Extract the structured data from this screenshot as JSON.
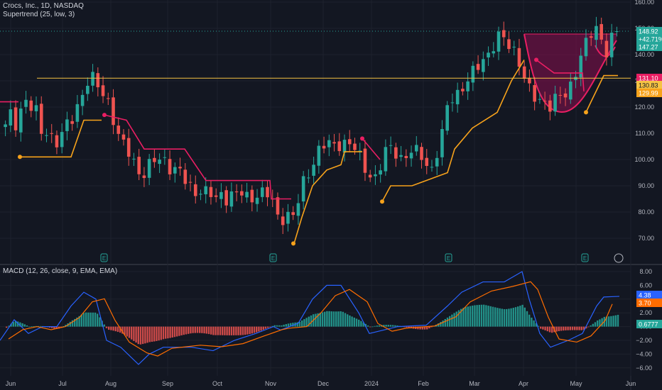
{
  "header": {
    "symbol_line": "Crocs, Inc., 1D, NASDAQ",
    "indicator_line": "Supertrend (25, low, 3)",
    "macd_line": "MACD (12, 26, close, 9, EMA, EMA)"
  },
  "colors": {
    "background": "#131722",
    "grid": "#1e222d",
    "up": "#26a69a",
    "down": "#ef5350",
    "supertrend_up": "#f7a21b",
    "supertrend_down": "#e91e63",
    "resistance": "#f6c343",
    "macd": "#2962ff",
    "signal": "#ff6d00",
    "cup": "#880e4f"
  },
  "price_axis": {
    "ticks": [
      "160.00",
      "150.00",
      "140.00",
      "130.00",
      "120.00",
      "110.00",
      "100.00",
      "90.00",
      "80.00",
      "70.00"
    ],
    "badges": [
      {
        "text": "148.92",
        "bg": "#26a69a"
      },
      {
        "text": "+42.71%",
        "bg": "#26a69a"
      },
      {
        "text": "147.27",
        "bg": "#26a69a"
      },
      {
        "text": "131.10",
        "bg": "#e91e63"
      },
      {
        "text": "130.83",
        "bg": "#f6c343"
      },
      {
        "text": "129.99",
        "bg": "#f7a21b"
      }
    ]
  },
  "macd_axis": {
    "ticks": [
      "8.00",
      "6.00",
      "4.00",
      "2.00",
      "0.00",
      "−2.00",
      "−4.00",
      "−6.00"
    ],
    "badges": [
      {
        "text": "4.38",
        "bg": "#2962ff"
      },
      {
        "text": "3.70",
        "bg": "#ff6d00"
      },
      {
        "text": "0.6777",
        "bg": "#26a69a"
      }
    ]
  },
  "time_axis": {
    "labels": [
      "Jun",
      "Jul",
      "Aug",
      "Sep",
      "Oct",
      "Nov",
      "Dec",
      "2024",
      "Feb",
      "Mar",
      "Apr",
      "May",
      "Jun"
    ]
  },
  "earnings_marker": "E",
  "chart_data": [
    {
      "type": "line",
      "title": "Crocs, Inc., 1D, NASDAQ",
      "ylim": [
        63,
        163
      ],
      "close_path_daily": [
        112,
        117,
        114,
        120,
        123,
        119,
        117,
        109,
        112,
        108,
        106,
        110,
        114,
        117,
        123,
        127,
        131,
        129,
        127,
        124,
        121,
        110,
        106,
        104,
        101,
        97,
        94,
        96,
        99,
        100,
        101,
        98,
        96,
        95,
        92,
        90,
        88,
        89,
        87,
        86,
        85,
        87,
        86,
        87,
        86,
        87,
        85,
        86,
        88,
        87,
        86,
        82,
        76,
        80,
        79,
        78,
        88,
        93,
        97,
        103,
        105,
        106,
        104,
        106,
        107,
        107,
        105,
        101,
        97,
        95,
        93,
        97,
        102,
        104,
        103,
        101,
        102,
        103,
        102,
        101,
        98,
        97,
        104,
        110,
        121,
        124,
        126,
        129,
        131,
        133,
        136,
        139,
        142,
        146,
        147,
        144,
        142,
        141,
        135,
        128,
        124,
        121,
        123,
        121,
        123,
        124,
        123,
        126,
        133,
        140,
        144,
        147,
        149,
        146,
        142,
        147,
        148.92
      ],
      "resistance": 131,
      "supertrend_dots": [
        {
          "date": "Jun",
          "value": 101,
          "dir": "up"
        },
        {
          "date": "Jul",
          "value": 117,
          "dir": "down"
        },
        {
          "date": "Nov",
          "value": 68,
          "dir": "up"
        },
        {
          "date": "Dec",
          "value": 108,
          "dir": "down"
        },
        {
          "date": "Jan",
          "value": 84,
          "dir": "up"
        },
        {
          "date": "Apr",
          "value": 138,
          "dir": "down"
        },
        {
          "date": "May",
          "value": 118,
          "dir": "up"
        }
      ],
      "last_close": 148.92,
      "change_pct": "+42.71%"
    },
    {
      "type": "line",
      "title": "MACD (12, 26, close, 9, EMA, EMA)",
      "ylim": [
        -7,
        9
      ],
      "series": [
        {
          "name": "MACD",
          "last": 4.38
        },
        {
          "name": "Signal",
          "last": 3.7
        },
        {
          "name": "Histogram",
          "last": 0.6777
        }
      ]
    }
  ]
}
